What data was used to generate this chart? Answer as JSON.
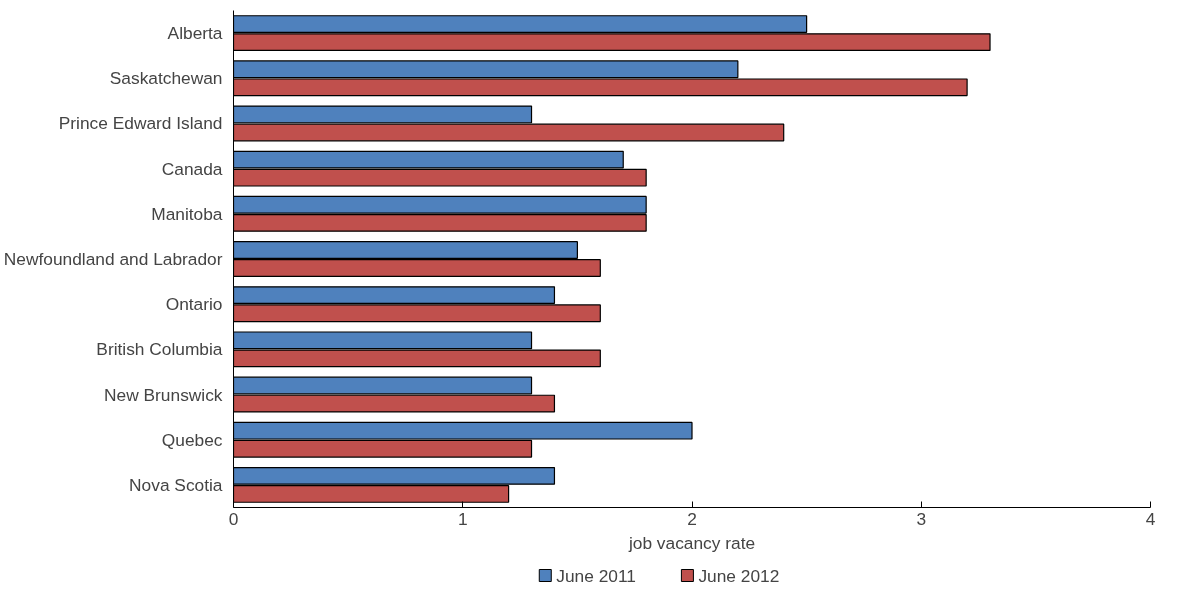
{
  "chart_data": {
    "type": "bar",
    "orientation": "horizontal",
    "xlabel": "job vacancy rate",
    "categories": [
      "Alberta",
      "Saskatchewan",
      "Prince Edward Island",
      "Canada",
      "Manitoba",
      "Newfoundland and Labrador",
      "Ontario",
      "British Columbia",
      "New Brunswick",
      "Quebec",
      "Nova Scotia"
    ],
    "series": [
      {
        "name": "June 2011",
        "color": "#4f81bd",
        "values": [
          2.5,
          2.2,
          1.3,
          1.7,
          1.8,
          1.5,
          1.4,
          1.3,
          1.3,
          2.0,
          1.4
        ]
      },
      {
        "name": "June 2012",
        "color": "#c0504d",
        "values": [
          3.3,
          3.2,
          2.4,
          1.8,
          1.8,
          1.6,
          1.6,
          1.6,
          1.4,
          1.3,
          1.2
        ]
      }
    ],
    "xlim": [
      0,
      4
    ],
    "xticks": [
      0,
      1,
      2,
      3,
      4
    ],
    "grid": false,
    "legend": "bottom"
  }
}
